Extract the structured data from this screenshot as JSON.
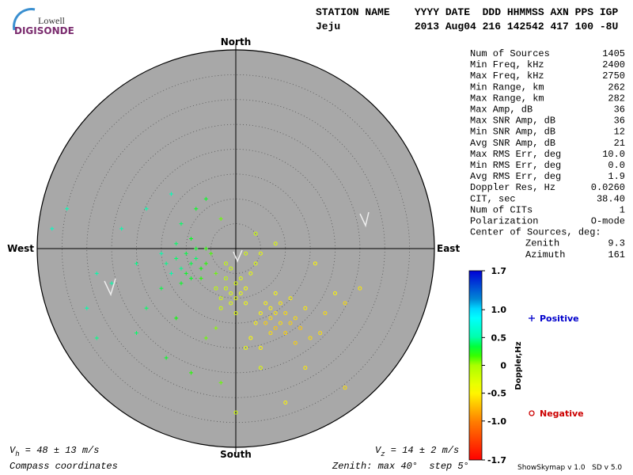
{
  "logo": {
    "small": "Lowell",
    "big": "DIGISONDE"
  },
  "header": {
    "labels": "STATION NAME    YYYY DATE  DDD HHMMSS AXN PPS IGP",
    "values": "Jeju            2013 Aug04 216 142542 417 100 -8U"
  },
  "directions": {
    "north": "North",
    "south": "South",
    "east": "East",
    "west": "West"
  },
  "stats": [
    [
      "Num of Sources",
      "1405"
    ],
    [
      "Min Freq, kHz",
      "2400"
    ],
    [
      "Max Freq, kHz",
      "2750"
    ],
    [
      "Min Range, km",
      "262"
    ],
    [
      "Max Range, km",
      "282"
    ],
    [
      "Max Amp, dB",
      "36"
    ],
    [
      "Max SNR Amp, dB",
      "36"
    ],
    [
      "Min SNR Amp, dB",
      "12"
    ],
    [
      "Avg SNR Amp, dB",
      "21"
    ],
    [
      "Max RMS Err, deg",
      "10.0"
    ],
    [
      "Min RMS Err, deg",
      "0.0"
    ],
    [
      "Avg RMS Err, deg",
      "1.9"
    ],
    [
      "Doppler Res, Hz",
      "0.0260"
    ],
    [
      "CIT, sec",
      "38.40"
    ],
    [
      "Num of CITs",
      "1"
    ],
    [
      "Polarization",
      "O-mode"
    ]
  ],
  "center": {
    "title": "Center of Sources, deg:",
    "rows": [
      [
        "Zenith",
        "9.3"
      ],
      [
        "Azimuth",
        "161"
      ]
    ]
  },
  "colorbar": {
    "label": "Doppler,Hz",
    "lim": [
      -1.7,
      1.7
    ],
    "ticks": [
      1.7,
      {
        "value": 1,
        "label": "1.0"
      },
      0.5,
      0,
      -0.5,
      {
        "value": -1,
        "label": "-1.0"
      },
      -1.7
    ]
  },
  "legend": {
    "positive": "Positive",
    "negative": "Negative"
  },
  "footer": {
    "vh": [
      "V",
      "h",
      " = 48 ± 13 m/s"
    ],
    "vz": [
      "V",
      "z",
      " = 14 ± 2 m/s"
    ],
    "coords": "Compass coordinates",
    "zenith": "Zenith: max 40°  step 5°",
    "version": "ShowSkymap v 1.0   SD v 5.0"
  },
  "skymap": {
    "zenith_max": 40,
    "zenith_step": 5
  },
  "points": [
    [
      -9,
      -3,
      0.35
    ],
    [
      -10,
      -5,
      0.3
    ],
    [
      -8,
      -2,
      0.4
    ],
    [
      -11,
      -4,
      0.45
    ],
    [
      -7,
      -4,
      0.25
    ],
    [
      -12,
      -2,
      0.4
    ],
    [
      -9,
      -6,
      0.3
    ],
    [
      -6,
      -3,
      0.2
    ],
    [
      -13,
      -5,
      0.5
    ],
    [
      -8,
      0,
      0.3
    ],
    [
      -10,
      -1,
      0.35
    ],
    [
      -5,
      -1,
      0.15
    ],
    [
      -14,
      -3,
      0.45
    ],
    [
      -11,
      -7,
      0.3
    ],
    [
      -7,
      -6,
      0.2
    ],
    [
      -4,
      -5,
      0.1
    ],
    [
      -12,
      1,
      0.4
    ],
    [
      -15,
      -1,
      0.5
    ],
    [
      -9,
      2,
      0.3
    ],
    [
      -6,
      0,
      0.2
    ],
    [
      -2,
      -8,
      -0.2
    ],
    [
      -1,
      -9,
      -0.3
    ],
    [
      0,
      -7,
      -0.25
    ],
    [
      -3,
      -10,
      -0.2
    ],
    [
      1,
      -9,
      -0.35
    ],
    [
      -2,
      -6,
      -0.1
    ],
    [
      -1,
      -11,
      -0.3
    ],
    [
      0,
      -10,
      -0.3
    ],
    [
      -4,
      -8,
      -0.1
    ],
    [
      2,
      -8,
      -0.4
    ],
    [
      -3,
      -12,
      -0.2
    ],
    [
      1,
      -6,
      -0.3
    ],
    [
      -1,
      -4,
      -0.2
    ],
    [
      3,
      -5,
      -0.35
    ],
    [
      2,
      -11,
      -0.4
    ],
    [
      -2,
      -3,
      -0.15
    ],
    [
      4,
      -3,
      -0.3
    ],
    [
      2,
      -1,
      -0.25
    ],
    [
      5,
      -1,
      -0.35
    ],
    [
      0,
      -13,
      -0.3
    ],
    [
      7,
      -14,
      -0.6
    ],
    [
      8,
      -13,
      -0.55
    ],
    [
      6,
      -15,
      -0.65
    ],
    [
      9,
      -15,
      -0.6
    ],
    [
      7,
      -12,
      -0.5
    ],
    [
      10,
      -13,
      -0.6
    ],
    [
      8,
      -16,
      -0.7
    ],
    [
      5,
      -13,
      -0.5
    ],
    [
      11,
      -15,
      -0.65
    ],
    [
      6,
      -11,
      -0.5
    ],
    [
      12,
      -14,
      -0.6
    ],
    [
      9,
      -11,
      -0.55
    ],
    [
      4,
      -15,
      -0.5
    ],
    [
      10,
      -17,
      -0.65
    ],
    [
      13,
      -16,
      -0.7
    ],
    [
      7,
      -17,
      -0.6
    ],
    [
      3,
      -18,
      -0.45
    ],
    [
      15,
      -18,
      -0.6
    ],
    [
      11,
      -10,
      -0.5
    ],
    [
      14,
      -12,
      -0.55
    ],
    [
      17,
      -17,
      -0.6
    ],
    [
      5,
      -20,
      -0.5
    ],
    [
      12,
      -19,
      -0.65
    ],
    [
      8,
      -9,
      -0.45
    ],
    [
      -37,
      4,
      0.6
    ],
    [
      -34,
      8,
      0.55
    ],
    [
      -23,
      4,
      0.5
    ],
    [
      -13,
      11,
      0.55
    ],
    [
      -18,
      8,
      0.5
    ],
    [
      -25,
      -7,
      0.5
    ],
    [
      -28,
      -18,
      0.45
    ],
    [
      -20,
      -17,
      0.4
    ],
    [
      -14,
      -22,
      0.3
    ],
    [
      -9,
      -25,
      0.2
    ],
    [
      -3,
      -27,
      0.1
    ],
    [
      0,
      -33,
      -0.2
    ],
    [
      10,
      -31,
      -0.5
    ],
    [
      22,
      -28,
      -0.6
    ],
    [
      5,
      -24,
      -0.3
    ],
    [
      -12,
      -14,
      0.25
    ],
    [
      -18,
      -12,
      0.4
    ],
    [
      -6,
      -18,
      0.1
    ],
    [
      14,
      -24,
      -0.55
    ],
    [
      20,
      -9,
      -0.5
    ],
    [
      22,
      -11,
      -0.6
    ],
    [
      16,
      -3,
      -0.5
    ],
    [
      8,
      1,
      -0.3
    ],
    [
      4,
      3,
      -0.2
    ],
    [
      -3,
      6,
      0.1
    ],
    [
      -6,
      10,
      0.3
    ],
    [
      -28,
      -5,
      0.5
    ],
    [
      -15,
      -8,
      0.35
    ],
    [
      -20,
      -3,
      0.45
    ],
    [
      -30,
      -12,
      0.5
    ],
    [
      -4,
      -16,
      0.05
    ],
    [
      2,
      -20,
      -0.35
    ],
    [
      18,
      -13,
      -0.6
    ],
    [
      25,
      -8,
      -0.55
    ],
    [
      -8,
      8,
      0.3
    ],
    [
      -11,
      5,
      0.4
    ]
  ]
}
